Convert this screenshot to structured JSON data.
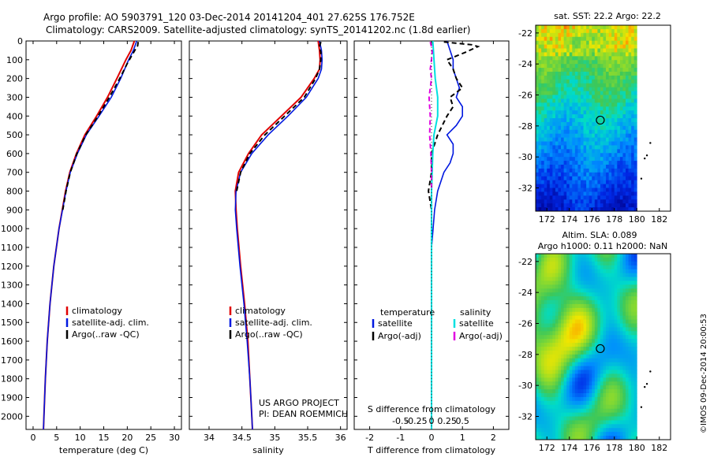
{
  "header": {
    "line1": "Argo profile: AO 5903791_120 03-Dec-2014 20141204_401 27.625S 176.752E",
    "line2": "Climatology: CARS2009. Satellite-adjusted climatology: synTS_20141202.nc (1.8d earlier)"
  },
  "colors": {
    "clim": "#e00000",
    "sat": "#0018e0",
    "argo": "#000000",
    "sal_sat": "#00e0e0",
    "sal_argo": "#e000e0"
  },
  "chart_data": [
    {
      "type": "line",
      "panel": "temperature",
      "xlabel": "temperature (deg C)",
      "ylabel": "",
      "xlim": [
        -1.5,
        31.5
      ],
      "ylim": [
        0,
        2070
      ],
      "xticks": [
        0,
        5,
        10,
        15,
        20,
        25,
        30
      ],
      "yticks": [
        0,
        100,
        200,
        300,
        400,
        500,
        600,
        700,
        800,
        900,
        1000,
        1100,
        1200,
        1300,
        1400,
        1500,
        1600,
        1700,
        1800,
        1900,
        2000
      ],
      "legend": [
        "climatology",
        "satellite-adj. clim.",
        "Argo(..raw -QC)"
      ],
      "series": [
        {
          "name": "climatology",
          "depth": [
            0,
            50,
            100,
            200,
            300,
            400,
            500,
            600,
            700,
            800,
            1000,
            1200,
            1400,
            1600,
            1800,
            2000,
            2070
          ],
          "values": [
            21.5,
            20.8,
            19.7,
            17.8,
            15.8,
            13.5,
            11.0,
            9.2,
            7.8,
            6.9,
            5.5,
            4.4,
            3.6,
            3.0,
            2.6,
            2.3,
            2.2
          ]
        },
        {
          "name": "satellite-adj. clim.",
          "depth": [
            0,
            50,
            100,
            200,
            300,
            400,
            500,
            600,
            700,
            800,
            1000,
            1200,
            1400,
            1600,
            1800,
            2000,
            2070
          ],
          "values": [
            22.0,
            21.3,
            20.3,
            18.6,
            16.6,
            14.0,
            11.3,
            9.4,
            7.9,
            7.0,
            5.5,
            4.4,
            3.6,
            3.0,
            2.6,
            2.3,
            2.2
          ]
        },
        {
          "name": "Argo(..raw -QC)",
          "depth": [
            5,
            25,
            50,
            80,
            120,
            200,
            300,
            400,
            500,
            600,
            700,
            800,
            900
          ],
          "values": [
            22.3,
            22.2,
            21.6,
            20.9,
            20.0,
            18.4,
            16.2,
            13.8,
            11.2,
            9.3,
            7.9,
            7.0,
            6.3
          ]
        }
      ]
    },
    {
      "type": "line",
      "panel": "salinity",
      "xlabel": "salinity",
      "xlim": [
        33.7,
        36.1
      ],
      "ylim": [
        0,
        2070
      ],
      "xticks": [
        34,
        34.5,
        35,
        35.5,
        36
      ],
      "legend": [
        "climatology",
        "satellite-adj. clim.",
        "Argo(..raw -QC)"
      ],
      "annotation": [
        "US ARGO PROJECT",
        "PI: DEAN ROEMMICH"
      ],
      "series": [
        {
          "name": "climatology",
          "depth": [
            0,
            50,
            100,
            150,
            200,
            300,
            400,
            500,
            600,
            700,
            800,
            900,
            1000,
            1200,
            1400,
            1600,
            1800,
            2000,
            2070
          ],
          "values": [
            35.66,
            35.68,
            35.69,
            35.68,
            35.6,
            35.4,
            35.1,
            34.8,
            34.6,
            34.45,
            34.4,
            34.41,
            34.43,
            34.48,
            34.54,
            34.59,
            34.62,
            34.65,
            34.66
          ]
        },
        {
          "name": "satellite-adj. clim.",
          "depth": [
            0,
            50,
            100,
            150,
            200,
            300,
            400,
            500,
            600,
            700,
            800,
            900,
            1000,
            1200,
            1400,
            1600,
            1800,
            2000,
            2070
          ],
          "values": [
            35.68,
            35.71,
            35.72,
            35.71,
            35.66,
            35.48,
            35.2,
            34.9,
            34.65,
            34.48,
            34.41,
            34.4,
            34.42,
            34.47,
            34.53,
            34.58,
            34.62,
            34.65,
            34.66
          ]
        },
        {
          "name": "Argo(..raw -QC)",
          "depth": [
            5,
            30,
            60,
            100,
            150,
            200,
            300,
            400,
            500,
            600,
            700,
            800
          ],
          "values": [
            35.7,
            35.68,
            35.7,
            35.7,
            35.68,
            35.62,
            35.45,
            35.15,
            34.85,
            34.62,
            34.48,
            34.42
          ]
        }
      ]
    },
    {
      "type": "line",
      "panel": "differences",
      "xlabel": "T difference from climatology",
      "xlabel2": "S difference from climatology",
      "xlim": [
        -2.5,
        2.5
      ],
      "ylim": [
        0,
        2070
      ],
      "xticks": [
        -2,
        -1,
        0,
        1,
        2
      ],
      "xticks2": [
        -0.5,
        -0.25,
        0,
        0.25,
        0.5
      ],
      "legend_titles": [
        "temperature",
        "salinity"
      ],
      "legend": [
        "satellite",
        "Argo(-adj)",
        "satellite",
        "Argo(-adj)"
      ],
      "series": [
        {
          "name": "T satellite",
          "depth": [
            0,
            50,
            100,
            150,
            200,
            250,
            300,
            350,
            400,
            450,
            500,
            550,
            600,
            650,
            700,
            800,
            900,
            1000,
            1100,
            1200,
            2070
          ],
          "values": [
            0.5,
            0.6,
            0.7,
            0.7,
            0.8,
            0.9,
            0.8,
            1.0,
            1.0,
            0.8,
            0.5,
            0.7,
            0.7,
            0.6,
            0.4,
            0.2,
            0.1,
            0.05,
            0.0,
            0.0,
            0.0
          ]
        },
        {
          "name": "T Argo(-adj)",
          "depth": [
            5,
            20,
            30,
            60,
            80,
            100,
            150,
            200,
            250,
            300,
            350,
            400,
            500,
            600,
            700,
            800,
            900
          ],
          "values": [
            0.4,
            1.3,
            1.5,
            1.1,
            0.8,
            0.5,
            0.7,
            0.8,
            1.0,
            0.6,
            0.7,
            0.5,
            0.2,
            0.0,
            0.0,
            -0.1,
            0.0
          ]
        },
        {
          "name": "S satellite",
          "depth": [
            0,
            50,
            100,
            150,
            200,
            300,
            400,
            500,
            600,
            800,
            1000,
            1200,
            2070
          ],
          "values": [
            0.02,
            0.03,
            0.04,
            0.05,
            0.06,
            0.1,
            0.1,
            0.04,
            0.02,
            0.0,
            0.0,
            0.0,
            0.0
          ]
        },
        {
          "name": "S Argo(-adj)",
          "depth": [
            5,
            30,
            60,
            100,
            150,
            200,
            300,
            400,
            500,
            600,
            700,
            800
          ],
          "values": [
            -0.02,
            0.0,
            0.01,
            0.0,
            -0.02,
            0.0,
            -0.04,
            -0.02,
            -0.03,
            -0.01,
            0.0,
            0.0
          ]
        }
      ]
    },
    {
      "type": "heatmap",
      "panel": "sst-map",
      "title": "sat. SST: 22.2  Argo: 22.2",
      "xticks": [
        172,
        174,
        176,
        178,
        180,
        182
      ],
      "yticks": [
        -22,
        -24,
        -26,
        -28,
        -30,
        -32
      ],
      "xlim": [
        171,
        183
      ],
      "ylim": [
        -33.5,
        -21.5
      ]
    },
    {
      "type": "heatmap",
      "panel": "sla-map",
      "title": "Altim. SLA: 0.089",
      "subtitle": "Argo h1000: 0.11 h2000: NaN",
      "xticks": [
        172,
        174,
        176,
        178,
        180,
        182
      ],
      "yticks": [
        -22,
        -24,
        -26,
        -28,
        -30,
        -32
      ],
      "xlim": [
        171,
        183
      ],
      "ylim": [
        -33.5,
        -21.5
      ]
    }
  ],
  "footer": {
    "credit": "©IMOS 09-Dec-2014 20:00:53"
  }
}
